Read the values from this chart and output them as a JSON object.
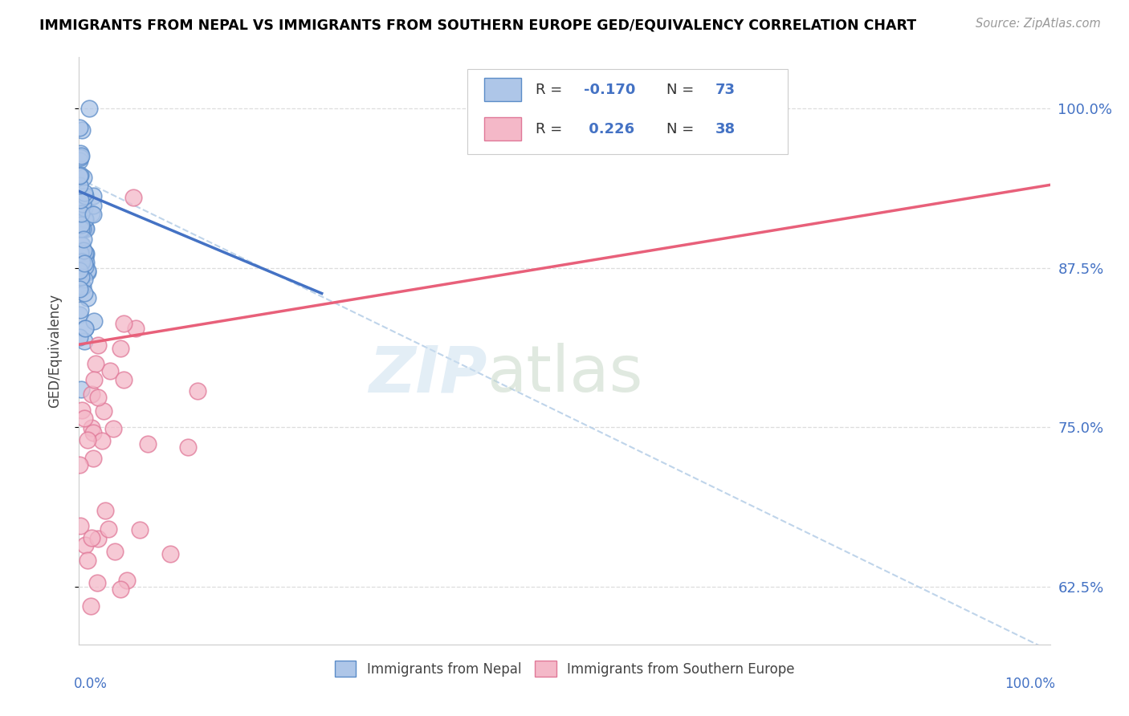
{
  "title": "IMMIGRANTS FROM NEPAL VS IMMIGRANTS FROM SOUTHERN EUROPE GED/EQUIVALENCY CORRELATION CHART",
  "source": "Source: ZipAtlas.com",
  "ylabel": "GED/Equivalency",
  "ytick_labels": [
    "62.5%",
    "75.0%",
    "87.5%",
    "100.0%"
  ],
  "ytick_values": [
    0.625,
    0.75,
    0.875,
    1.0
  ],
  "color_nepal": "#aec6e8",
  "color_s_europe": "#f4b8c8",
  "color_nepal_edge": "#5b8cc8",
  "color_s_europe_edge": "#e07898",
  "color_nepal_line": "#4472c4",
  "color_s_europe_line": "#e8607a",
  "color_dashed": "#b8d0e8",
  "nepal_r": -0.17,
  "nepal_n": 73,
  "s_europe_r": 0.226,
  "s_europe_n": 38,
  "xlim": [
    0.0,
    1.0
  ],
  "ylim": [
    0.58,
    1.04
  ],
  "nepal_line_x": [
    0.0,
    0.25
  ],
  "nepal_line_y": [
    0.935,
    0.855
  ],
  "s_europe_line_x": [
    0.0,
    1.0
  ],
  "s_europe_line_y": [
    0.815,
    0.94
  ],
  "dashed_line_x": [
    0.0,
    1.0
  ],
  "dashed_line_y": [
    0.945,
    0.575
  ]
}
